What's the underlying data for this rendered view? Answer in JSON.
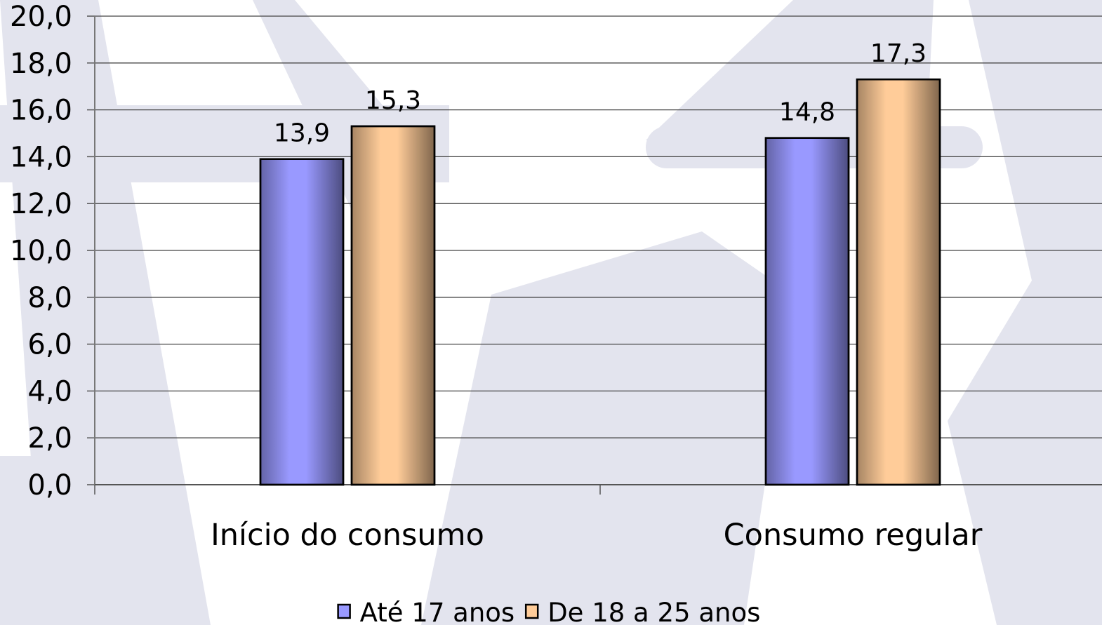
{
  "chart_data": {
    "type": "bar",
    "categories": [
      "Início do consumo",
      "Consumo regular"
    ],
    "series": [
      {
        "name": "Até 17 anos",
        "color": "#9999ff",
        "values": [
          13.9,
          14.8
        ],
        "value_labels": [
          "13,9",
          "14,8"
        ]
      },
      {
        "name": "De 18 a 25 anos",
        "color": "#ffcc99",
        "values": [
          15.3,
          17.3
        ],
        "value_labels": [
          "15,3",
          "17,3"
        ]
      }
    ],
    "ylim": [
      0,
      20
    ],
    "yticks": [
      {
        "value": 0,
        "label": "0,0"
      },
      {
        "value": 2,
        "label": "2,0"
      },
      {
        "value": 4,
        "label": "4,0"
      },
      {
        "value": 6,
        "label": "6,0"
      },
      {
        "value": 8,
        "label": "8,0"
      },
      {
        "value": 10,
        "label": "10,0"
      },
      {
        "value": 12,
        "label": "12,0"
      },
      {
        "value": 14,
        "label": "14,0"
      },
      {
        "value": 16,
        "label": "16,0"
      },
      {
        "value": 18,
        "label": "18,0"
      },
      {
        "value": 20,
        "label": "20,0"
      }
    ],
    "grid": true,
    "legend": "bottom"
  }
}
